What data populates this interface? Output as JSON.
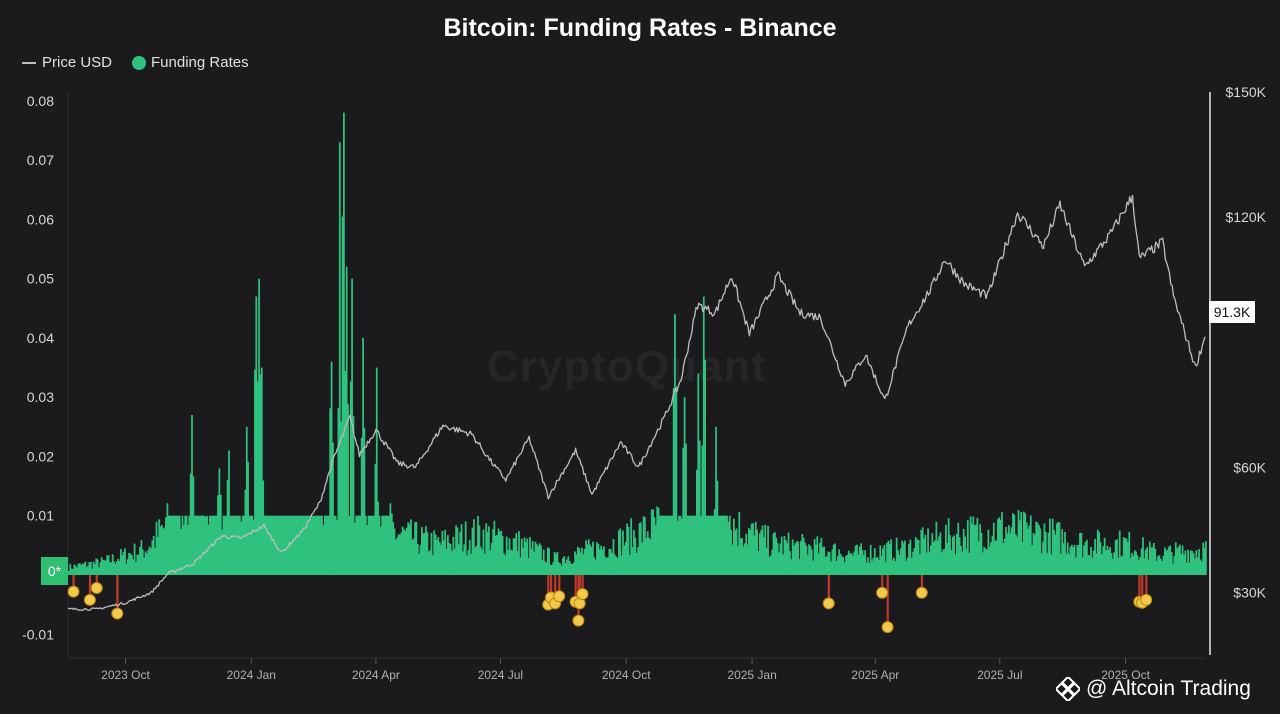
{
  "chart_data": {
    "type": "bar",
    "title": "Bitcoin: Funding Rates - Binance",
    "legend": {
      "placement": "top-left",
      "items": [
        {
          "name": "Price USD",
          "kind": "line",
          "color": "#bdbdbd"
        },
        {
          "name": "Funding Rates",
          "kind": "bar",
          "color": "#2ec27e"
        }
      ]
    },
    "watermark": "CryptoQuant",
    "grid": false,
    "x_axis": {
      "type": "date",
      "range": [
        "2023-08-20",
        "2025-11-28"
      ],
      "ticks": [
        {
          "date": "2023-10-01",
          "label": "2023 Oct"
        },
        {
          "date": "2024-01-01",
          "label": "2024 Jan"
        },
        {
          "date": "2024-04-01",
          "label": "2024 Apr"
        },
        {
          "date": "2024-07-01",
          "label": "2024 Jul"
        },
        {
          "date": "2024-10-01",
          "label": "2024 Oct"
        },
        {
          "date": "2025-01-01",
          "label": "2025 Jan"
        },
        {
          "date": "2025-04-01",
          "label": "2025 Apr"
        },
        {
          "date": "2025-07-01",
          "label": "2025 Jul"
        },
        {
          "date": "2025-10-01",
          "label": "2025 Oct"
        }
      ]
    },
    "y_left": {
      "range": [
        -0.0135,
        0.0815
      ],
      "ticks": [
        "0.08",
        "0.07",
        "0.06",
        "0.05",
        "0.04",
        "0.03",
        "0.02",
        "0.01",
        "-0.01"
      ],
      "tick_values": [
        0.08,
        0.07,
        0.06,
        0.05,
        0.04,
        0.03,
        0.02,
        0.01,
        -0.01
      ],
      "zero_badge": "0*"
    },
    "y_right": {
      "range": [
        15000,
        150000
      ],
      "ticks": [
        "$150K",
        "$120K",
        "$60K",
        "$30K"
      ],
      "tick_values": [
        150000,
        120000,
        60000,
        30000
      ],
      "current_price_label": "91.3K",
      "current_price": 91300
    },
    "price_series": {
      "name": "Price USD",
      "color": "#bdbdbd",
      "points": [
        [
          "2023-08-20",
          26000
        ],
        [
          "2023-09-10",
          26000
        ],
        [
          "2023-10-01",
          27500
        ],
        [
          "2023-10-20",
          30000
        ],
        [
          "2023-11-01",
          34500
        ],
        [
          "2023-11-20",
          37000
        ],
        [
          "2023-12-10",
          43500
        ],
        [
          "2023-12-25",
          43000
        ],
        [
          "2024-01-10",
          46000
        ],
        [
          "2024-01-23",
          39500
        ],
        [
          "2024-02-08",
          45000
        ],
        [
          "2024-02-20",
          51500
        ],
        [
          "2024-02-29",
          61000
        ],
        [
          "2024-03-13",
          72000
        ],
        [
          "2024-03-20",
          63000
        ],
        [
          "2024-04-01",
          69000
        ],
        [
          "2024-04-17",
          61000
        ],
        [
          "2024-04-30",
          60000
        ],
        [
          "2024-05-20",
          70000
        ],
        [
          "2024-06-10",
          68000
        ],
        [
          "2024-06-25",
          61000
        ],
        [
          "2024-07-05",
          57000
        ],
        [
          "2024-07-22",
          67000
        ],
        [
          "2024-08-05",
          53000
        ],
        [
          "2024-08-25",
          64000
        ],
        [
          "2024-09-06",
          53500
        ],
        [
          "2024-09-27",
          66000
        ],
        [
          "2024-10-10",
          60000
        ],
        [
          "2024-10-29",
          72000
        ],
        [
          "2024-11-10",
          81000
        ],
        [
          "2024-11-22",
          99000
        ],
        [
          "2024-12-05",
          97000
        ],
        [
          "2024-12-17",
          106000
        ],
        [
          "2024-12-30",
          92000
        ],
        [
          "2025-01-20",
          106000
        ],
        [
          "2025-02-05",
          97000
        ],
        [
          "2025-02-20",
          96000
        ],
        [
          "2025-03-10",
          80000
        ],
        [
          "2025-03-25",
          87000
        ],
        [
          "2025-04-08",
          76000
        ],
        [
          "2025-04-25",
          94000
        ],
        [
          "2025-05-12",
          103000
        ],
        [
          "2025-05-22",
          110000
        ],
        [
          "2025-06-05",
          104000
        ],
        [
          "2025-06-22",
          101000
        ],
        [
          "2025-07-14",
          121000
        ],
        [
          "2025-08-02",
          113000
        ],
        [
          "2025-08-14",
          123000
        ],
        [
          "2025-09-01",
          108000
        ],
        [
          "2025-09-20",
          116000
        ],
        [
          "2025-10-06",
          125000
        ],
        [
          "2025-10-11",
          110000
        ],
        [
          "2025-10-28",
          114000
        ],
        [
          "2025-11-05",
          101000
        ],
        [
          "2025-11-21",
          84000
        ],
        [
          "2025-11-28",
          91300
        ]
      ]
    },
    "funding_series": {
      "name": "Funding Rates",
      "positive_color": "#2ec27e",
      "negative_color": "#c0392b",
      "marker_color": "#f2c94c",
      "segments": [
        [
          "2023-08-20",
          0.0015
        ],
        [
          "2023-09-15",
          0.0025
        ],
        [
          "2023-10-15",
          0.005
        ],
        [
          "2023-11-01",
          0.01
        ],
        [
          "2024-01-01",
          0.01
        ],
        [
          "2024-02-10",
          0.01
        ],
        [
          "2024-03-01",
          0.03
        ],
        [
          "2024-03-15",
          0.02
        ],
        [
          "2024-04-15",
          0.008
        ],
        [
          "2024-05-15",
          0.006
        ],
        [
          "2024-06-15",
          0.008
        ],
        [
          "2024-07-15",
          0.006
        ],
        [
          "2024-08-10",
          0.003
        ],
        [
          "2024-09-20",
          0.006
        ],
        [
          "2024-10-10",
          0.008
        ],
        [
          "2024-10-25",
          0.01
        ],
        [
          "2024-12-15",
          0.01
        ],
        [
          "2025-01-15",
          0.006
        ],
        [
          "2025-02-20",
          0.005
        ],
        [
          "2025-03-15",
          0.004
        ],
        [
          "2025-04-20",
          0.005
        ],
        [
          "2025-05-15",
          0.007
        ],
        [
          "2025-07-01",
          0.009
        ],
        [
          "2025-08-01",
          0.008
        ],
        [
          "2025-09-01",
          0.006
        ],
        [
          "2025-10-01",
          0.006
        ],
        [
          "2025-10-25",
          0.004
        ],
        [
          "2025-11-28",
          0.005
        ]
      ],
      "spikes": [
        [
          "2023-11-18",
          0.027
        ],
        [
          "2023-12-08",
          0.018
        ],
        [
          "2023-12-15",
          0.021
        ],
        [
          "2023-12-28",
          0.025
        ],
        [
          "2024-01-04",
          0.047
        ],
        [
          "2024-01-06",
          0.05
        ],
        [
          "2024-01-08",
          0.035
        ],
        [
          "2024-02-28",
          0.036
        ],
        [
          "2024-03-05",
          0.073
        ],
        [
          "2024-03-08",
          0.078
        ],
        [
          "2024-03-10",
          0.052
        ],
        [
          "2024-03-14",
          0.05
        ],
        [
          "2024-03-22",
          0.04
        ],
        [
          "2024-04-01",
          0.035
        ],
        [
          "2024-11-05",
          0.044
        ],
        [
          "2024-11-12",
          0.03
        ],
        [
          "2024-11-22",
          0.034
        ],
        [
          "2024-11-26",
          0.047
        ],
        [
          "2024-12-05",
          0.025
        ]
      ],
      "negative_markers": [
        [
          "2023-08-24",
          -0.0028
        ],
        [
          "2023-09-05",
          -0.0042
        ],
        [
          "2023-09-10",
          -0.0022
        ],
        [
          "2023-09-25",
          -0.0065
        ],
        [
          "2024-08-05",
          -0.005
        ],
        [
          "2024-08-07",
          -0.0038
        ],
        [
          "2024-08-10",
          -0.0048
        ],
        [
          "2024-08-13",
          -0.0036
        ],
        [
          "2024-08-25",
          -0.0045
        ],
        [
          "2024-08-27",
          -0.0077
        ],
        [
          "2024-08-28",
          -0.0048
        ],
        [
          "2024-08-30",
          -0.0032
        ],
        [
          "2025-02-26",
          -0.0048
        ],
        [
          "2025-04-06",
          -0.003
        ],
        [
          "2025-04-10",
          -0.0088
        ],
        [
          "2025-05-05",
          -0.003
        ],
        [
          "2025-10-11",
          -0.0045
        ],
        [
          "2025-10-13",
          -0.0047
        ],
        [
          "2025-10-16",
          -0.0042
        ]
      ]
    }
  },
  "credit": "@ Altcoin Trading"
}
